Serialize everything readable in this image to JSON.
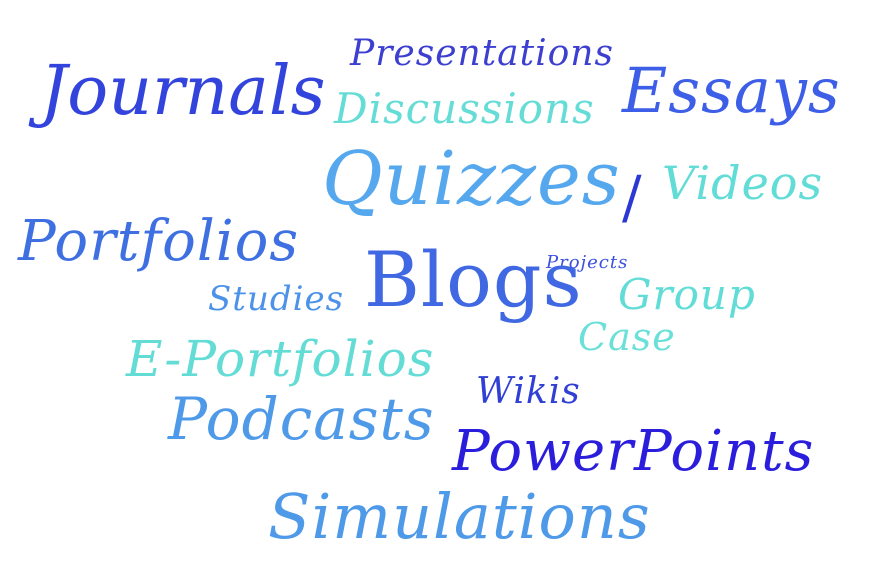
{
  "words": [
    {
      "id": "journals",
      "text": "Journals",
      "color": "#3344dd"
    },
    {
      "id": "presentations",
      "text": "Presentations",
      "color": "#3c3fd0"
    },
    {
      "id": "discussions",
      "text": "Discussions",
      "color": "#66dcd6"
    },
    {
      "id": "essays",
      "text": "Essays",
      "color": "#3d5ee6"
    },
    {
      "id": "quizzes",
      "text": "Quizzes",
      "color": "#56a8ee"
    },
    {
      "id": "slash",
      "text": "/",
      "color": "#2b38d4"
    },
    {
      "id": "videos",
      "text": "Videos",
      "color": "#62dcd6"
    },
    {
      "id": "portfolios",
      "text": "Portfolios",
      "color": "#3f70e2"
    },
    {
      "id": "projects",
      "text": "Projects",
      "color": "#3c50dc"
    },
    {
      "id": "blogs",
      "text": "Blogs",
      "color": "#3f68e2"
    },
    {
      "id": "studies",
      "text": "Studies",
      "color": "#4c92e8"
    },
    {
      "id": "group",
      "text": "Group",
      "color": "#62dcd6"
    },
    {
      "id": "case",
      "text": "Case",
      "color": "#6ae0d8"
    },
    {
      "id": "eportfolios",
      "text": "E-Portfolios",
      "color": "#64dcd6"
    },
    {
      "id": "wikis",
      "text": "Wikis",
      "color": "#3140d4"
    },
    {
      "id": "podcasts",
      "text": "Podcasts",
      "color": "#4e9ae8"
    },
    {
      "id": "powerpoints",
      "text": "PowerPoints",
      "color": "#2a1edc"
    },
    {
      "id": "simulations",
      "text": "Simulations",
      "color": "#4e9ae8"
    }
  ]
}
